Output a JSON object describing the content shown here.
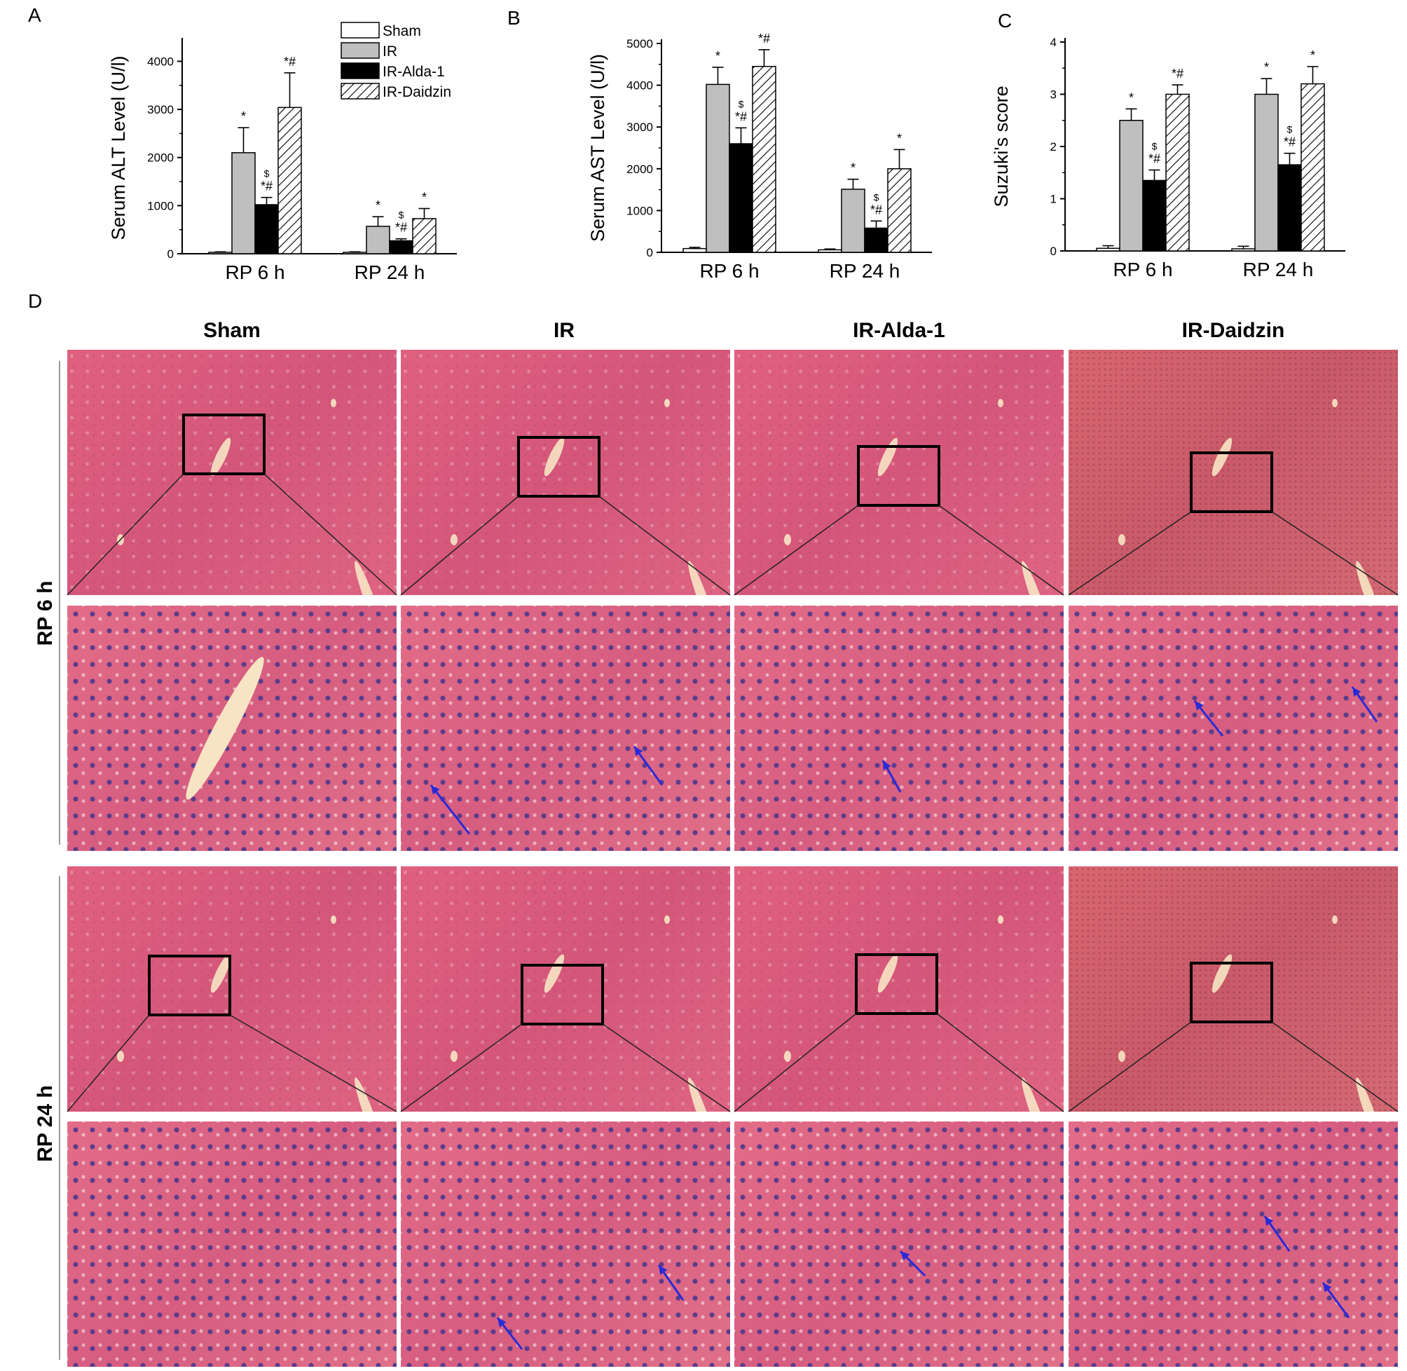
{
  "panel_labels": {
    "a": "A",
    "b": "B",
    "c": "C",
    "d": "D"
  },
  "legend": [
    {
      "name": "Sham",
      "pattern": "white"
    },
    {
      "name": "IR",
      "pattern": "gray"
    },
    {
      "name": "IR-Alda-1",
      "pattern": "black"
    },
    {
      "name": "IR-Daidzin",
      "pattern": "hatch"
    }
  ],
  "colors": {
    "sham": "#ffffff",
    "ir": "#bfbfbf",
    "alda": "#000000",
    "daidzin_hatch": "#000000",
    "arrow": "#2a2ad8"
  },
  "chart_data": [
    {
      "type": "bar",
      "ylabel": "Serum ALT Level (U/l)",
      "categories": [
        "RP 6 h",
        "RP 24 h"
      ],
      "ylim": [
        0,
        4400
      ],
      "yticks": [
        0,
        1000,
        2000,
        3000,
        4000
      ],
      "series": [
        {
          "name": "Sham",
          "values": [
            30,
            30
          ],
          "errors": [
            10,
            10
          ],
          "annotations": [
            "",
            ""
          ]
        },
        {
          "name": "IR",
          "values": [
            2100,
            570
          ],
          "errors": [
            520,
            200
          ],
          "annotations": [
            "*",
            "*"
          ]
        },
        {
          "name": "IR-Alda-1",
          "values": [
            1020,
            270
          ],
          "errors": [
            150,
            40
          ],
          "annotations": [
            "$|*#",
            "$|*#"
          ]
        },
        {
          "name": "IR-Daidzin",
          "values": [
            3040,
            730
          ],
          "errors": [
            720,
            210
          ],
          "annotations": [
            "*#",
            "*"
          ]
        }
      ]
    },
    {
      "type": "bar",
      "ylabel": "Serum AST Level (U/l)",
      "categories": [
        "RP 6 h",
        "RP 24 h"
      ],
      "ylim": [
        0,
        5000
      ],
      "yticks": [
        0,
        1000,
        2000,
        3000,
        4000,
        5000
      ],
      "series": [
        {
          "name": "Sham",
          "values": [
            90,
            60
          ],
          "errors": [
            30,
            20
          ],
          "annotations": [
            "",
            ""
          ]
        },
        {
          "name": "IR",
          "values": [
            4020,
            1510
          ],
          "errors": [
            410,
            240
          ],
          "annotations": [
            "*",
            "*"
          ]
        },
        {
          "name": "IR-Alda-1",
          "values": [
            2600,
            580
          ],
          "errors": [
            380,
            170
          ],
          "annotations": [
            "$|*#",
            "$|*#"
          ]
        },
        {
          "name": "IR-Daidzin",
          "values": [
            4450,
            2000
          ],
          "errors": [
            400,
            460
          ],
          "annotations": [
            "*#",
            "*"
          ]
        }
      ]
    },
    {
      "type": "bar",
      "ylabel": "Suzuki's score",
      "categories": [
        "RP 6 h",
        "RP 24 h"
      ],
      "ylim": [
        0,
        4
      ],
      "yticks": [
        0,
        1,
        2,
        3,
        4
      ],
      "series": [
        {
          "name": "Sham",
          "values": [
            0.05,
            0.04
          ],
          "errors": [
            0.05,
            0.05
          ],
          "annotations": [
            "",
            ""
          ]
        },
        {
          "name": "IR",
          "values": [
            2.5,
            3.0
          ],
          "errors": [
            0.22,
            0.3
          ],
          "annotations": [
            "*",
            "*"
          ]
        },
        {
          "name": "IR-Alda-1",
          "values": [
            1.35,
            1.65
          ],
          "errors": [
            0.2,
            0.22
          ],
          "annotations": [
            "$|*#",
            "$|*#"
          ]
        },
        {
          "name": "IR-Daidzin",
          "values": [
            3.0,
            3.2
          ],
          "errors": [
            0.18,
            0.33
          ],
          "annotations": [
            "*#",
            "*"
          ]
        }
      ]
    }
  ],
  "histology": {
    "columns": [
      "Sham",
      "IR",
      "IR-Alda-1",
      "IR-Daidzin"
    ],
    "rows": [
      "RP 6 h",
      "RP 24 h"
    ]
  }
}
